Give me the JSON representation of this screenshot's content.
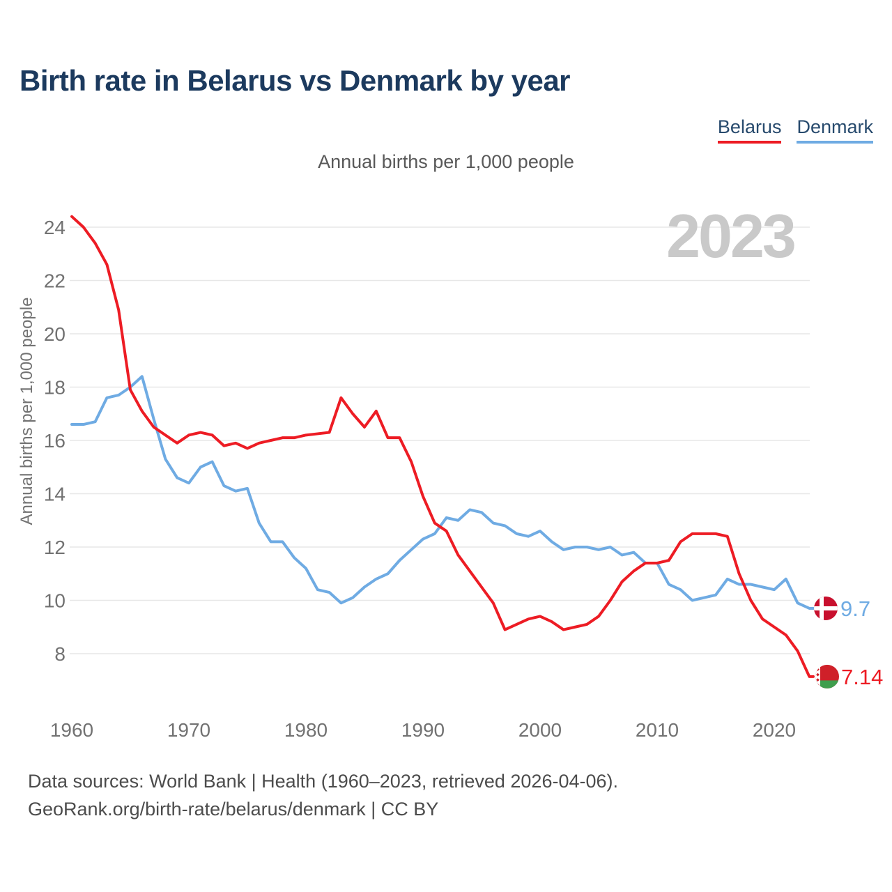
{
  "header": {
    "title": "Birth rate in Belarus vs Denmark by year"
  },
  "subtitle": "Annual births per 1,000 people",
  "watermark": "2023",
  "legend": [
    {
      "label": "Belarus",
      "color": "#ed1c24"
    },
    {
      "label": "Denmark",
      "color": "#6fabe3"
    }
  ],
  "colors": {
    "belarus": "#ed1c24",
    "denmark": "#6fabe3",
    "title": "#1c3a5e",
    "legend_text": "#274a6d",
    "subtitle": "#595959",
    "axis_text": "#727272",
    "grid": "#e7e7e7",
    "watermark": "#c9c9c9",
    "footer": "#4c4c4c",
    "background": "#ffffff",
    "denmark_flag_red": "#c8102e",
    "belarus_flag_red": "#cf2029",
    "belarus_flag_green": "#3f9e4d"
  },
  "chart_data": {
    "type": "line",
    "title": "Birth rate in Belarus vs Denmark by year",
    "subtitle": "Annual births per 1,000 people",
    "xlabel": "",
    "ylabel": "Annual births per 1,000 people",
    "grid": "horizontal",
    "legend_position": "top-right",
    "x_ticks": [
      1960,
      1970,
      1980,
      1990,
      2000,
      2010,
      2020
    ],
    "y_ticks": [
      8,
      10,
      12,
      14,
      16,
      18,
      20,
      22,
      24
    ],
    "ylim": [
      6.9,
      24.6
    ],
    "xlim": [
      1960,
      2023
    ],
    "years": [
      1960,
      1961,
      1962,
      1963,
      1964,
      1965,
      1966,
      1967,
      1968,
      1969,
      1970,
      1971,
      1972,
      1973,
      1974,
      1975,
      1976,
      1977,
      1978,
      1979,
      1980,
      1981,
      1982,
      1983,
      1984,
      1985,
      1986,
      1987,
      1988,
      1989,
      1990,
      1991,
      1992,
      1993,
      1994,
      1995,
      1996,
      1997,
      1998,
      1999,
      2000,
      2001,
      2002,
      2003,
      2004,
      2005,
      2006,
      2007,
      2008,
      2009,
      2010,
      2011,
      2012,
      2013,
      2014,
      2015,
      2016,
      2017,
      2018,
      2019,
      2020,
      2021,
      2022,
      2023
    ],
    "series": [
      {
        "name": "Belarus",
        "color": "#ed1c24",
        "end_label": "7.14",
        "values": [
          24.4,
          24.0,
          23.4,
          22.6,
          20.9,
          17.9,
          17.1,
          16.5,
          16.2,
          15.9,
          16.2,
          16.3,
          16.2,
          15.8,
          15.9,
          15.7,
          15.9,
          16.0,
          16.1,
          16.1,
          16.2,
          16.25,
          16.3,
          17.6,
          17.0,
          16.5,
          17.1,
          16.1,
          16.1,
          15.2,
          13.9,
          12.9,
          12.6,
          11.7,
          11.1,
          10.5,
          9.9,
          8.9,
          9.1,
          9.3,
          9.4,
          9.2,
          8.9,
          9.0,
          9.1,
          9.4,
          10.0,
          10.7,
          11.1,
          11.4,
          11.4,
          11.5,
          12.2,
          12.5,
          12.5,
          12.5,
          12.4,
          11.0,
          10.0,
          9.3,
          9.0,
          8.7,
          8.1,
          7.14
        ]
      },
      {
        "name": "Denmark",
        "color": "#6fabe3",
        "end_label": "9.7",
        "values": [
          16.6,
          16.6,
          16.7,
          17.6,
          17.7,
          18.0,
          18.4,
          16.8,
          15.3,
          14.6,
          14.4,
          15.0,
          15.2,
          14.3,
          14.1,
          14.2,
          12.9,
          12.2,
          12.2,
          11.6,
          11.2,
          10.4,
          10.3,
          9.9,
          10.1,
          10.5,
          10.8,
          11.0,
          11.5,
          11.9,
          12.3,
          12.5,
          13.1,
          13.0,
          13.4,
          13.3,
          12.9,
          12.8,
          12.5,
          12.4,
          12.6,
          12.2,
          11.9,
          12.0,
          12.0,
          11.9,
          12.0,
          11.7,
          11.8,
          11.4,
          11.4,
          10.6,
          10.4,
          10.0,
          10.1,
          10.2,
          10.8,
          10.6,
          10.6,
          10.5,
          10.4,
          10.8,
          9.9,
          9.7
        ]
      }
    ]
  },
  "footer": {
    "line1": "Data sources: World Bank | Health (1960–2023, retrieved 2026-04-06).",
    "line2": "GeoRank.org/birth-rate/belarus/denmark | CC BY"
  }
}
